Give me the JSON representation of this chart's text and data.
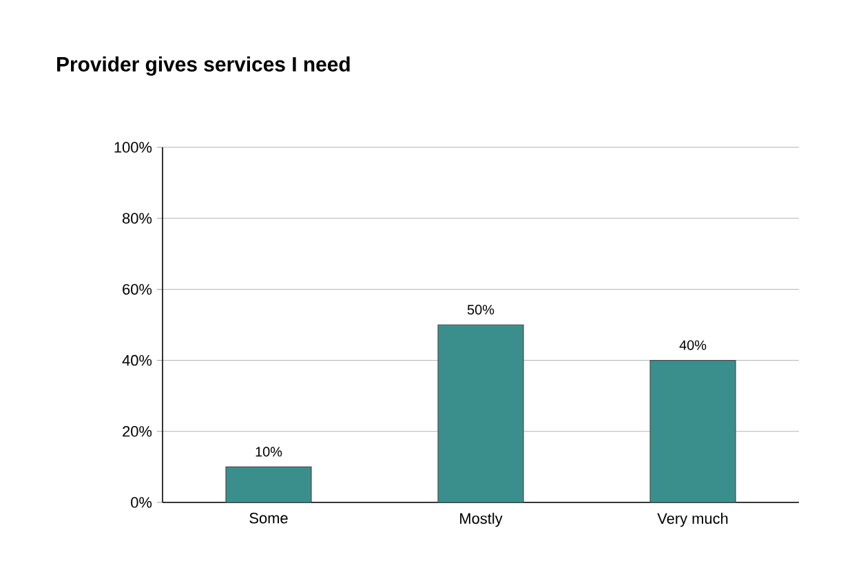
{
  "chart_data": {
    "type": "bar",
    "title": "Provider gives services I need",
    "categories": [
      "Some",
      "Mostly",
      "Very much"
    ],
    "values": [
      10,
      50,
      40
    ],
    "color": "#3a8f8c",
    "ylim": [
      0,
      100
    ],
    "yticks": [
      {
        "value": 0,
        "label": "0%"
      },
      {
        "value": 20,
        "label": "20%"
      },
      {
        "value": 40,
        "label": "40%"
      },
      {
        "value": 60,
        "label": "60%"
      },
      {
        "value": 80,
        "label": "80%"
      },
      {
        "value": 100,
        "label": "100%"
      }
    ],
    "value_labels": [
      "10%",
      "50%",
      "40%"
    ],
    "grid": "y"
  }
}
